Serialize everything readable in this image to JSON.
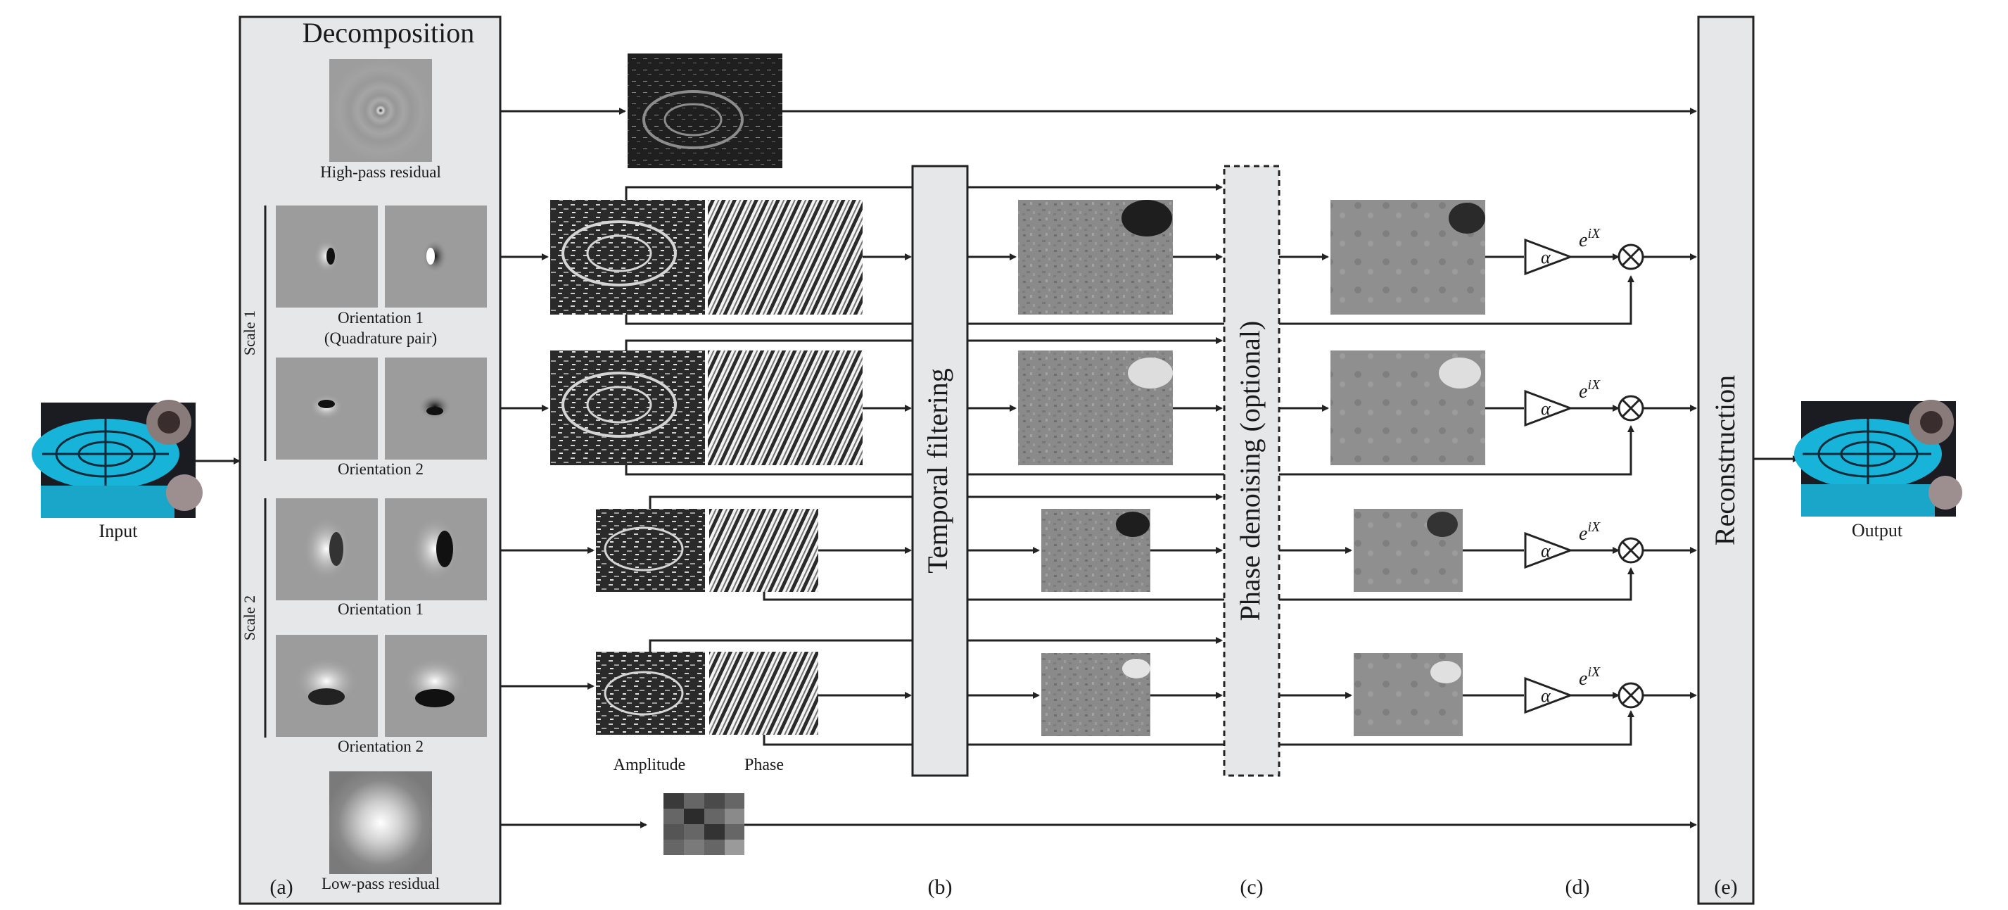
{
  "labels": {
    "input": "Input",
    "output": "Output",
    "decomposition": "Decomposition",
    "high_pass": "High-pass residual",
    "low_pass": "Low-pass residual",
    "scale1": "Scale 1",
    "scale2": "Scale 2",
    "orient1_scale1": "Orientation 1",
    "quadrature": "(Quadrature pair)",
    "orient2_scale1": "Orientation 2",
    "orient1_scale2": "Orientation 1",
    "orient2_scale2": "Orientation 2",
    "amplitude": "Amplitude",
    "phase": "Phase",
    "temporal": "Temporal filtering",
    "denoise": "Phase denoising (optional)",
    "reconstruction": "Reconstruction",
    "alpha": "α",
    "exp_base": "e",
    "exp_power": "iX",
    "multiply": "⊗"
  },
  "panels": {
    "a": "(a)",
    "b": "(b)",
    "c": "(c)",
    "d": "(d)",
    "e": "(e)"
  },
  "colors": {
    "panel_fill": "#e6e7e9",
    "stroke": "#222222",
    "teal": "#17b3d8"
  }
}
